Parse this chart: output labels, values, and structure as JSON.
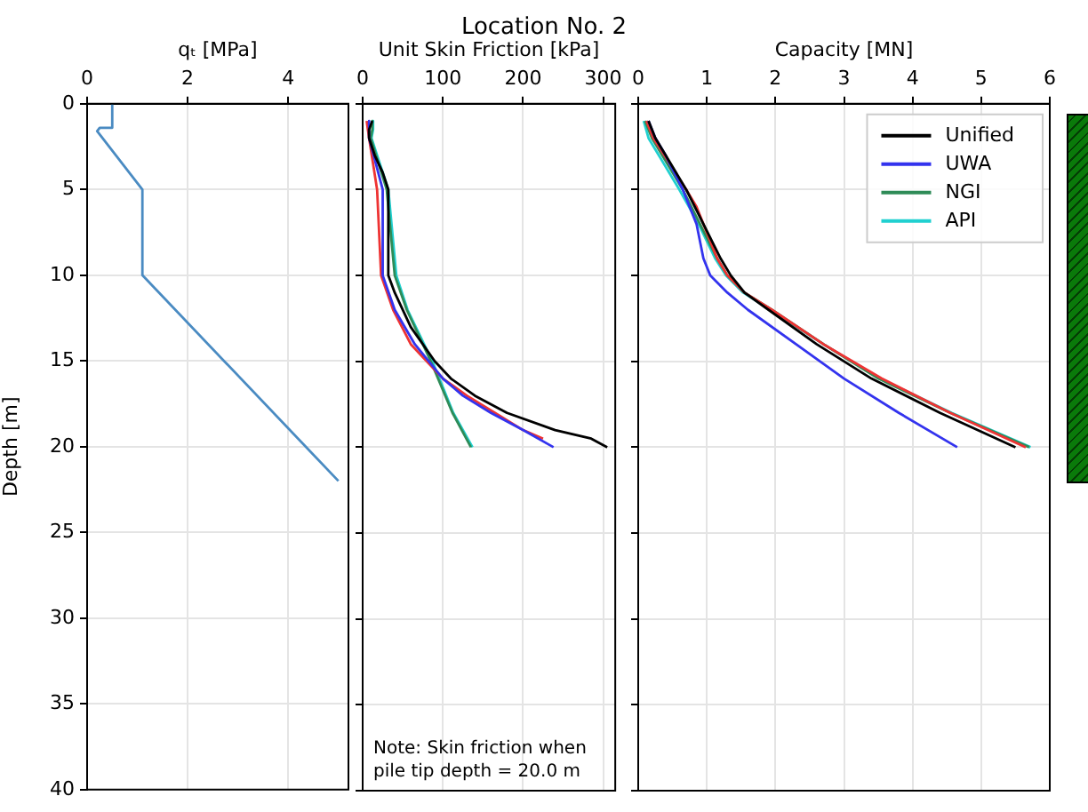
{
  "chart_data": [
    {
      "type": "line",
      "xlabel": "qₜ [MPa]",
      "ylabel": "Depth [m]",
      "xlim": [
        0,
        5.2
      ],
      "xticks": [
        0,
        2,
        4
      ],
      "ylim": [
        40,
        0
      ],
      "yticks": [
        0,
        5,
        10,
        15,
        20,
        25,
        30,
        35,
        40
      ],
      "grid": true,
      "series": [
        {
          "color": "#4a8bc2",
          "x": [
            0.5,
            0.5,
            0.25,
            0.2,
            1.1,
            1.1,
            5.0
          ],
          "values": [
            0,
            1.4,
            1.4,
            1.6,
            5,
            10,
            22
          ]
        }
      ]
    },
    {
      "type": "line",
      "title": "Location No. 2",
      "xlabel": "Unit Skin Friction [kPa]",
      "xlim": [
        0,
        315
      ],
      "xticks": [
        0,
        100,
        200,
        300
      ],
      "ylim": [
        40,
        0
      ],
      "yticks": [
        0,
        5,
        10,
        15,
        20,
        25,
        30,
        35,
        40
      ],
      "grid": true,
      "tick_labels": "x",
      "annotations": [
        "Note: Skin friction when pile tip depth = 20.0 m"
      ],
      "series": [
        {
          "color": "#000000",
          "x": [
            12,
            8,
            8,
            15,
            25,
            32,
            32,
            40,
            60,
            90,
            110,
            140,
            180,
            240,
            285,
            305
          ],
          "values": [
            1,
            1.5,
            2,
            3,
            4,
            5,
            10,
            11,
            13,
            15,
            16,
            17,
            18,
            19,
            19.5,
            20
          ]
        },
        {
          "color": "#3333ee",
          "x": [
            8,
            8,
            25,
            25,
            40,
            65,
            100,
            125,
            160,
            200,
            238
          ],
          "values": [
            1,
            2,
            5,
            10,
            12,
            14,
            16,
            17,
            18,
            19,
            20
          ]
        },
        {
          "color": "#ee3333",
          "x": [
            5,
            8,
            18,
            23,
            38,
            60,
            100,
            130,
            165,
            200,
            225
          ],
          "values": [
            1,
            2,
            5,
            10,
            12,
            14,
            16,
            17,
            18,
            19,
            19.5
          ]
        },
        {
          "color": "#2e8b57",
          "x": [
            12,
            12,
            10,
            30,
            40,
            55,
            85,
            112,
            135
          ],
          "values": [
            1,
            1.5,
            2,
            5,
            10,
            12,
            15,
            18,
            20
          ]
        },
        {
          "color": "#20d0d0",
          "x": [
            13,
            13,
            11,
            32,
            42,
            56,
            87,
            113,
            137
          ],
          "values": [
            1,
            1.5,
            2,
            5,
            10,
            12,
            15,
            18,
            20
          ]
        }
      ]
    },
    {
      "type": "line",
      "xlabel": "Capacity [MN]",
      "xlim": [
        0,
        6
      ],
      "xticks": [
        0,
        1,
        2,
        3,
        4,
        5,
        6
      ],
      "ylim": [
        40,
        0
      ],
      "yticks": [
        0,
        5,
        10,
        15,
        20,
        25,
        30,
        35,
        40
      ],
      "grid": true,
      "tick_labels": "x",
      "legend": "top right",
      "series": [
        {
          "name": "Unified",
          "color": "#000000",
          "x": [
            0.15,
            0.25,
            0.4,
            0.7,
            0.95,
            1.2,
            1.35,
            1.55,
            1.9,
            2.6,
            3.4,
            4.4,
            5.5
          ],
          "values": [
            1,
            2,
            3,
            5,
            7,
            9,
            10,
            11,
            12,
            14,
            16,
            18,
            20
          ]
        },
        {
          "name": "UWA",
          "color": "#3333ee",
          "x": [
            0.15,
            0.25,
            0.4,
            0.65,
            0.85,
            0.95,
            1.05,
            1.3,
            1.6,
            2.3,
            3.0,
            3.8,
            4.65
          ],
          "values": [
            1,
            2,
            3,
            5,
            7,
            9,
            10,
            11,
            12,
            14,
            16,
            18,
            20
          ]
        },
        {
          "color": "#ee3333",
          "x": [
            0.12,
            0.22,
            0.38,
            0.7,
            0.85,
            0.95,
            1.15,
            1.3,
            1.55,
            1.95,
            2.7,
            3.55,
            4.55,
            5.65
          ],
          "values": [
            1,
            2,
            3,
            5,
            6,
            7,
            9,
            10,
            11,
            12,
            14,
            16,
            18,
            20
          ]
        },
        {
          "name": "NGI",
          "color": "#2e8b57",
          "x": [
            0.1,
            0.2,
            0.35,
            0.65,
            0.9,
            1.15,
            1.3,
            1.55,
            1.95,
            2.7,
            3.5,
            4.55,
            5.7
          ],
          "values": [
            1,
            2,
            3,
            5,
            7,
            9,
            10,
            11,
            12,
            14,
            16,
            18,
            20
          ]
        },
        {
          "name": "API",
          "color": "#20d0d0",
          "x": [
            0.08,
            0.15,
            0.3,
            0.6,
            0.88,
            1.12,
            1.28,
            1.53,
            1.93,
            2.7,
            3.52,
            4.57,
            5.72
          ],
          "values": [
            1,
            2,
            3,
            5,
            7,
            9,
            10,
            11,
            12,
            14,
            16,
            18,
            20
          ]
        }
      ]
    }
  ]
}
